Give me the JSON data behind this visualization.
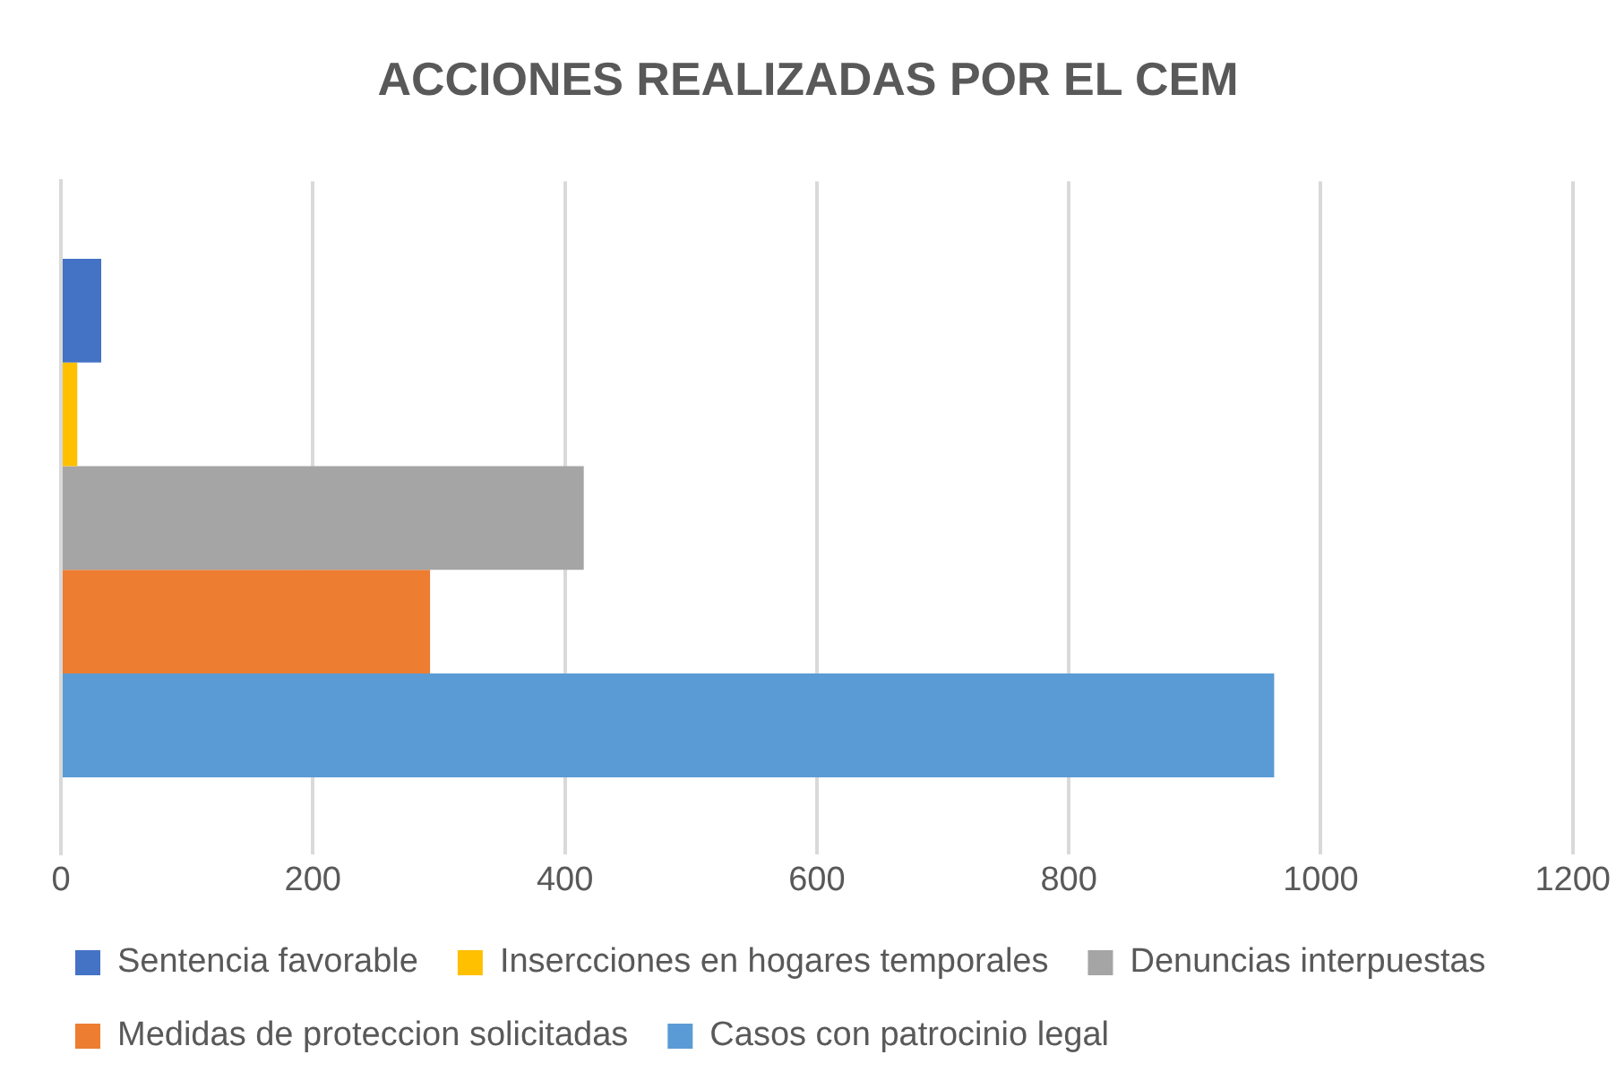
{
  "chart_data": {
    "type": "bar",
    "orientation": "horizontal",
    "title": "ACCIONES REALIZADAS POR EL CEM",
    "categories": [
      null
    ],
    "series": [
      {
        "name": "Sentencia favorable",
        "color": "#4472c4",
        "values": [
          32
        ]
      },
      {
        "name": "Insercciones en hogares temporales",
        "color": "#ffc000",
        "values": [
          13
        ]
      },
      {
        "name": "Denuncias interpuestas",
        "color": "#a5a5a5",
        "values": [
          415
        ]
      },
      {
        "name": "Medidas de proteccion solicitadas",
        "color": "#ed7d31",
        "values": [
          293
        ]
      },
      {
        "name": "Casos con patrocinio legal",
        "color": "#5b9bd5",
        "values": [
          963
        ]
      }
    ],
    "xlim": [
      0,
      1200
    ],
    "xticks": [
      0,
      200,
      400,
      600,
      800,
      1000,
      1200
    ],
    "grid": "x",
    "legend": "bottom"
  }
}
